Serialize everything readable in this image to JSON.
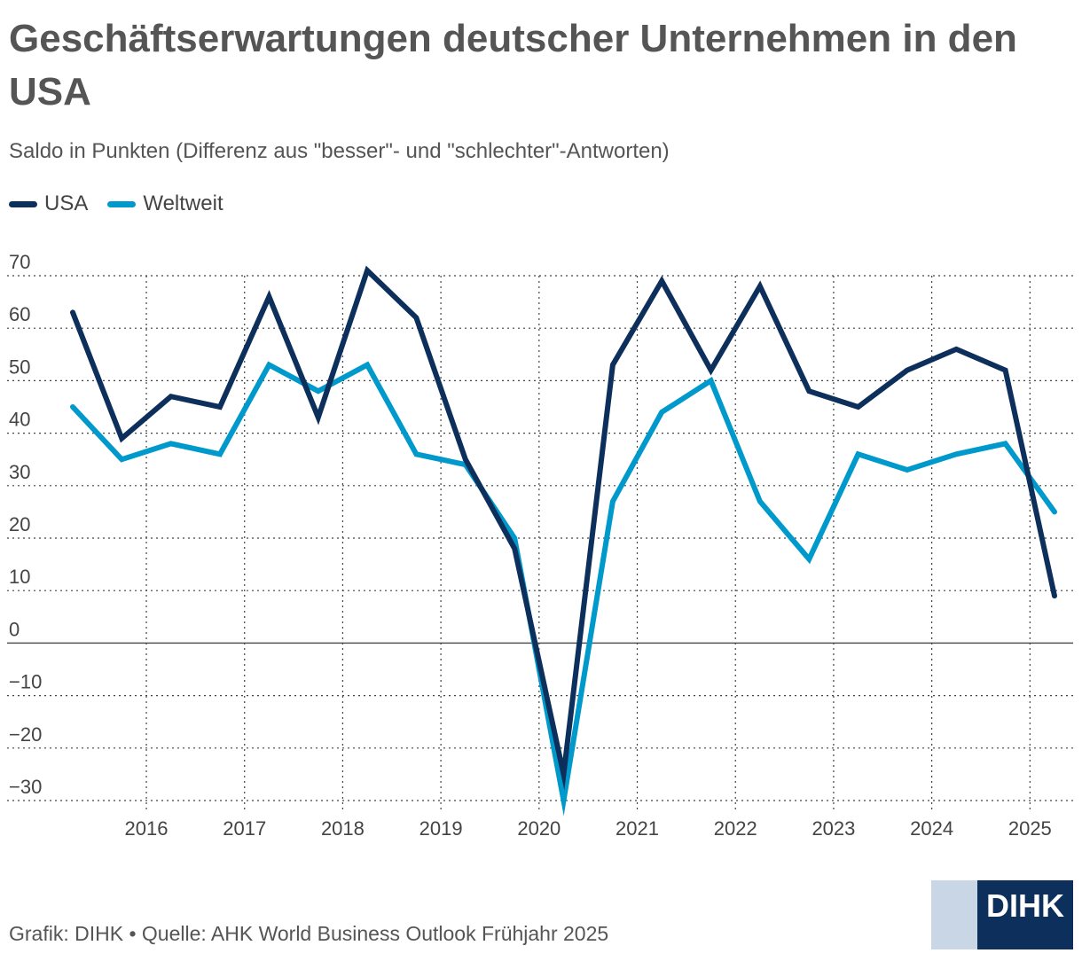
{
  "title": "Geschäftserwartungen deutscher Unternehmen in den USA",
  "subtitle": "Saldo in Punkten (Differenz aus \"besser\"- und \"schlechter\"-Antworten)",
  "legend": [
    {
      "name": "USA",
      "color": "#0d2f5c"
    },
    {
      "name": "Weltweit",
      "color": "#0099cc"
    }
  ],
  "footer": "Grafik: DIHK • Quelle: AHK World Business Outlook Frühjahr 2025",
  "logo": {
    "text": "DIHK"
  },
  "chart_data": {
    "type": "line",
    "title": "Geschäftserwartungen deutscher Unternehmen in den USA",
    "subtitle": "Saldo in Punkten (Differenz aus \"besser\"- und \"schlechter\"-Antworten)",
    "x": [
      2015.25,
      2015.75,
      2016.25,
      2016.75,
      2017.25,
      2017.75,
      2018.25,
      2018.75,
      2019.25,
      2019.75,
      2020.25,
      2020.75,
      2021.25,
      2021.75,
      2022.25,
      2022.75,
      2023.25,
      2023.75,
      2024.25,
      2024.75,
      2025.25
    ],
    "xticks": [
      "2016",
      "2017",
      "2018",
      "2019",
      "2020",
      "2021",
      "2022",
      "2023",
      "2024",
      "2025"
    ],
    "yticks": [
      70,
      60,
      50,
      40,
      30,
      20,
      10,
      0,
      -10,
      -20,
      -30
    ],
    "ylim": [
      -30,
      70
    ],
    "grid": true,
    "legend_position": "top-left",
    "series": [
      {
        "name": "USA",
        "color": "#0d2f5c",
        "values": [
          63,
          39,
          47,
          45,
          66,
          43,
          71,
          62,
          35,
          18,
          -25,
          53,
          69,
          52,
          68,
          48,
          45,
          52,
          56,
          52,
          9
        ]
      },
      {
        "name": "Weltweit",
        "color": "#0099cc",
        "values": [
          45,
          35,
          38,
          36,
          53,
          48,
          53,
          36,
          34,
          20,
          -30,
          27,
          44,
          50,
          27,
          16,
          36,
          33,
          36,
          38,
          25
        ]
      }
    ]
  }
}
